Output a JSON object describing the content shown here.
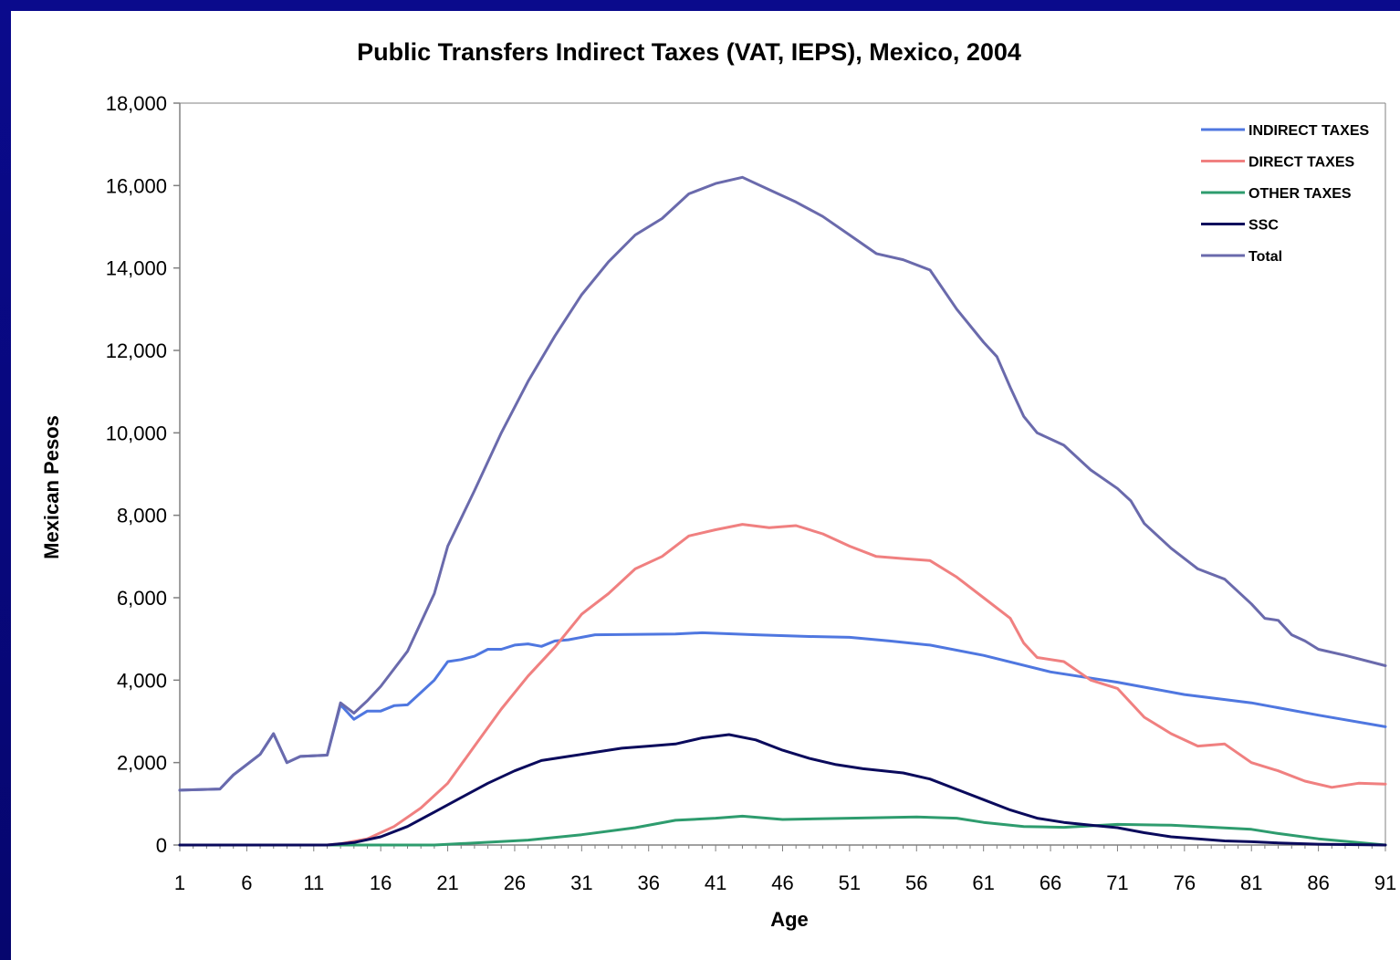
{
  "chart_data": {
    "type": "line",
    "title": "Public Transfers Indirect Taxes (VAT, IEPS), Mexico, 2004",
    "xlabel": "Age",
    "ylabel": "Mexican Pesos",
    "xlim": [
      1,
      91
    ],
    "ylim": [
      0,
      18000
    ],
    "x_ticks": [
      1,
      6,
      11,
      16,
      21,
      26,
      31,
      36,
      41,
      46,
      51,
      56,
      61,
      66,
      71,
      76,
      81,
      86,
      91
    ],
    "y_ticks": [
      0,
      2000,
      4000,
      6000,
      8000,
      10000,
      12000,
      14000,
      16000,
      18000
    ],
    "y_tick_labels": [
      "0",
      "2,000",
      "4,000",
      "6,000",
      "8,000",
      "10,000",
      "12,000",
      "14,000",
      "16,000",
      "18,000"
    ],
    "grid": false,
    "legend_position": "top-right",
    "series": [
      {
        "name": "INDIRECT TAXES",
        "color": "#4f77e0",
        "points": [
          [
            1,
            1330
          ],
          [
            4,
            1360
          ],
          [
            5,
            1700
          ],
          [
            7,
            2200
          ],
          [
            8,
            2700
          ],
          [
            9,
            2000
          ],
          [
            10,
            2150
          ],
          [
            12,
            2180
          ],
          [
            13,
            3400
          ],
          [
            14,
            3050
          ],
          [
            15,
            3250
          ],
          [
            16,
            3250
          ],
          [
            17,
            3380
          ],
          [
            18,
            3400
          ],
          [
            19,
            3700
          ],
          [
            20,
            4000
          ],
          [
            21,
            4450
          ],
          [
            22,
            4500
          ],
          [
            23,
            4580
          ],
          [
            24,
            4750
          ],
          [
            25,
            4750
          ],
          [
            26,
            4850
          ],
          [
            27,
            4880
          ],
          [
            28,
            4820
          ],
          [
            29,
            4950
          ],
          [
            30,
            4980
          ],
          [
            32,
            5100
          ],
          [
            38,
            5120
          ],
          [
            40,
            5150
          ],
          [
            44,
            5100
          ],
          [
            48,
            5060
          ],
          [
            51,
            5040
          ],
          [
            54,
            4950
          ],
          [
            57,
            4850
          ],
          [
            61,
            4600
          ],
          [
            66,
            4200
          ],
          [
            71,
            3950
          ],
          [
            76,
            3650
          ],
          [
            81,
            3450
          ],
          [
            86,
            3150
          ],
          [
            91,
            2870
          ]
        ]
      },
      {
        "name": "DIRECT TAXES",
        "color": "#f08080",
        "points": [
          [
            1,
            0
          ],
          [
            12,
            0
          ],
          [
            13,
            30
          ],
          [
            15,
            150
          ],
          [
            17,
            450
          ],
          [
            19,
            900
          ],
          [
            21,
            1500
          ],
          [
            23,
            2400
          ],
          [
            25,
            3300
          ],
          [
            27,
            4100
          ],
          [
            29,
            4800
          ],
          [
            31,
            5600
          ],
          [
            33,
            6100
          ],
          [
            35,
            6700
          ],
          [
            37,
            7000
          ],
          [
            39,
            7500
          ],
          [
            41,
            7650
          ],
          [
            43,
            7780
          ],
          [
            45,
            7700
          ],
          [
            47,
            7750
          ],
          [
            49,
            7550
          ],
          [
            51,
            7250
          ],
          [
            53,
            7000
          ],
          [
            55,
            6950
          ],
          [
            57,
            6900
          ],
          [
            59,
            6500
          ],
          [
            61,
            6000
          ],
          [
            63,
            5500
          ],
          [
            64,
            4900
          ],
          [
            65,
            4550
          ],
          [
            67,
            4450
          ],
          [
            69,
            4000
          ],
          [
            71,
            3800
          ],
          [
            73,
            3100
          ],
          [
            75,
            2700
          ],
          [
            77,
            2400
          ],
          [
            79,
            2450
          ],
          [
            81,
            2000
          ],
          [
            83,
            1800
          ],
          [
            85,
            1550
          ],
          [
            87,
            1400
          ],
          [
            89,
            1500
          ],
          [
            91,
            1480
          ]
        ]
      },
      {
        "name": "OTHER TAXES",
        "color": "#2e9c6e",
        "points": [
          [
            1,
            0
          ],
          [
            20,
            0
          ],
          [
            23,
            50
          ],
          [
            27,
            120
          ],
          [
            31,
            250
          ],
          [
            35,
            420
          ],
          [
            38,
            600
          ],
          [
            41,
            650
          ],
          [
            43,
            700
          ],
          [
            46,
            620
          ],
          [
            51,
            650
          ],
          [
            56,
            680
          ],
          [
            59,
            650
          ],
          [
            61,
            550
          ],
          [
            64,
            450
          ],
          [
            67,
            430
          ],
          [
            71,
            500
          ],
          [
            75,
            480
          ],
          [
            81,
            380
          ],
          [
            83,
            280
          ],
          [
            86,
            150
          ],
          [
            91,
            0
          ]
        ]
      },
      {
        "name": "SSC",
        "color": "#0a0a5c",
        "points": [
          [
            1,
            0
          ],
          [
            12,
            0
          ],
          [
            14,
            60
          ],
          [
            16,
            200
          ],
          [
            18,
            450
          ],
          [
            20,
            800
          ],
          [
            22,
            1150
          ],
          [
            24,
            1500
          ],
          [
            26,
            1800
          ],
          [
            28,
            2050
          ],
          [
            30,
            2150
          ],
          [
            32,
            2250
          ],
          [
            34,
            2350
          ],
          [
            36,
            2400
          ],
          [
            38,
            2450
          ],
          [
            40,
            2600
          ],
          [
            42,
            2680
          ],
          [
            44,
            2550
          ],
          [
            46,
            2300
          ],
          [
            48,
            2100
          ],
          [
            50,
            1950
          ],
          [
            52,
            1850
          ],
          [
            55,
            1750
          ],
          [
            57,
            1600
          ],
          [
            59,
            1350
          ],
          [
            61,
            1100
          ],
          [
            63,
            850
          ],
          [
            65,
            650
          ],
          [
            67,
            550
          ],
          [
            69,
            480
          ],
          [
            71,
            420
          ],
          [
            73,
            300
          ],
          [
            75,
            200
          ],
          [
            77,
            150
          ],
          [
            79,
            100
          ],
          [
            81,
            80
          ],
          [
            83,
            50
          ],
          [
            86,
            20
          ],
          [
            91,
            0
          ]
        ]
      },
      {
        "name": "Total",
        "color": "#6a6aac",
        "points": [
          [
            1,
            1330
          ],
          [
            4,
            1360
          ],
          [
            5,
            1700
          ],
          [
            7,
            2200
          ],
          [
            8,
            2700
          ],
          [
            9,
            2000
          ],
          [
            10,
            2150
          ],
          [
            12,
            2180
          ],
          [
            13,
            3450
          ],
          [
            14,
            3200
          ],
          [
            15,
            3500
          ],
          [
            16,
            3850
          ],
          [
            18,
            4700
          ],
          [
            20,
            6100
          ],
          [
            21,
            7250
          ],
          [
            23,
            8600
          ],
          [
            25,
            10000
          ],
          [
            27,
            11250
          ],
          [
            29,
            12350
          ],
          [
            31,
            13350
          ],
          [
            33,
            14150
          ],
          [
            35,
            14800
          ],
          [
            37,
            15200
          ],
          [
            39,
            15800
          ],
          [
            41,
            16050
          ],
          [
            43,
            16200
          ],
          [
            45,
            15900
          ],
          [
            47,
            15600
          ],
          [
            49,
            15250
          ],
          [
            51,
            14800
          ],
          [
            53,
            14350
          ],
          [
            55,
            14200
          ],
          [
            57,
            13950
          ],
          [
            59,
            13000
          ],
          [
            61,
            12200
          ],
          [
            62,
            11850
          ],
          [
            63,
            11100
          ],
          [
            64,
            10400
          ],
          [
            65,
            10000
          ],
          [
            67,
            9700
          ],
          [
            69,
            9100
          ],
          [
            71,
            8650
          ],
          [
            72,
            8350
          ],
          [
            73,
            7800
          ],
          [
            75,
            7200
          ],
          [
            77,
            6700
          ],
          [
            79,
            6450
          ],
          [
            81,
            5850
          ],
          [
            82,
            5500
          ],
          [
            83,
            5450
          ],
          [
            84,
            5100
          ],
          [
            85,
            4950
          ],
          [
            86,
            4750
          ],
          [
            88,
            4600
          ],
          [
            91,
            4350
          ]
        ]
      }
    ]
  }
}
